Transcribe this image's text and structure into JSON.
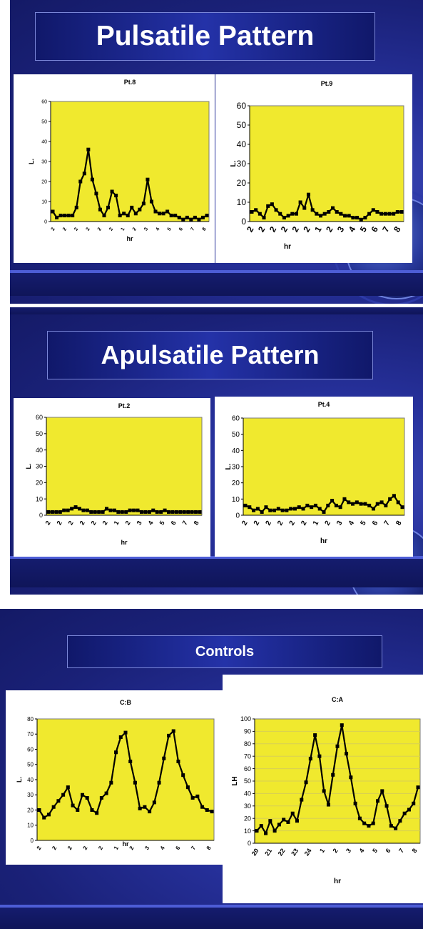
{
  "slides": [
    {
      "title": "Pulsatile Pattern"
    },
    {
      "title": "Apulsatile Pattern"
    },
    {
      "title": "Controls"
    }
  ],
  "chart_data": [
    {
      "type": "line",
      "title": "Pt.8",
      "ylabel": "L.",
      "xlabel": "hr",
      "ylim": [
        0,
        60
      ],
      "yticks": [
        0,
        10,
        20,
        30,
        40,
        50,
        60
      ],
      "xticks": [
        "2",
        "2",
        "2",
        "2",
        "2",
        "2",
        "1",
        "2",
        "3",
        "4",
        "5",
        "6",
        "7",
        "8"
      ],
      "grid": false,
      "values": [
        5,
        2,
        3,
        3,
        3,
        3,
        7,
        20,
        24,
        36,
        21,
        14,
        6,
        3,
        7,
        15,
        13,
        3,
        4,
        3,
        7,
        4,
        6,
        9,
        21,
        10,
        5,
        4,
        4,
        5,
        3,
        3,
        2,
        1,
        2,
        1,
        2,
        1,
        2,
        3
      ]
    },
    {
      "type": "line",
      "title": "Pt.9",
      "ylabel": "L.",
      "xlabel": "hr",
      "ylim": [
        0,
        60
      ],
      "yticks": [
        0,
        10,
        20,
        30,
        40,
        50,
        60
      ],
      "xticks": [
        "2",
        "2",
        "2",
        "2",
        "2",
        "2",
        "1",
        "2",
        "3",
        "4",
        "5",
        "6",
        "7",
        "8"
      ],
      "grid": false,
      "values": [
        5,
        6,
        4,
        2,
        8,
        9,
        6,
        4,
        2,
        3,
        4,
        4,
        10,
        7,
        14,
        6,
        4,
        3,
        4,
        5,
        7,
        5,
        4,
        3,
        3,
        2,
        2,
        1,
        2,
        4,
        6,
        5,
        4,
        4,
        4,
        4,
        5,
        5
      ]
    },
    {
      "type": "line",
      "title": "Pt.2",
      "ylabel": "L.",
      "xlabel": "hr",
      "ylim": [
        0,
        60
      ],
      "yticks": [
        0,
        10,
        20,
        30,
        40,
        50,
        60
      ],
      "xticks": [
        "2",
        "2",
        "2",
        "2",
        "2",
        "2",
        "1",
        "2",
        "3",
        "4",
        "5",
        "6",
        "7",
        "8"
      ],
      "grid": false,
      "values": [
        2,
        2,
        2,
        2,
        3,
        3,
        4,
        5,
        4,
        3,
        3,
        2,
        2,
        2,
        2,
        4,
        3,
        3,
        2,
        2,
        2,
        3,
        3,
        3,
        2,
        2,
        2,
        3,
        2,
        2,
        3,
        2,
        2,
        2,
        2,
        2,
        2,
        2,
        2,
        2
      ]
    },
    {
      "type": "line",
      "title": "Pt.4",
      "ylabel": "L.",
      "xlabel": "hr",
      "ylim": [
        0,
        60
      ],
      "yticks": [
        0,
        10,
        20,
        30,
        40,
        50,
        60
      ],
      "xticks": [
        "2",
        "2",
        "2",
        "2",
        "2",
        "2",
        "1",
        "2",
        "3",
        "4",
        "5",
        "6",
        "7",
        "8"
      ],
      "grid": false,
      "values": [
        6,
        5,
        3,
        4,
        2,
        5,
        3,
        3,
        4,
        3,
        3,
        4,
        4,
        5,
        4,
        6,
        5,
        6,
        4,
        2,
        6,
        9,
        6,
        5,
        10,
        8,
        7,
        8,
        7,
        7,
        6,
        4,
        7,
        8,
        6,
        10,
        12,
        8,
        5
      ]
    },
    {
      "type": "line",
      "title": "C:B",
      "ylabel": "L.",
      "xlabel": "hr",
      "ylim": [
        0,
        80
      ],
      "yticks": [
        0,
        10,
        20,
        30,
        40,
        50,
        60,
        70,
        80
      ],
      "xticks": [
        "2",
        "2",
        "2",
        "2",
        "2",
        "1",
        "2",
        "3",
        "4",
        "6",
        "7",
        "8"
      ],
      "grid": false,
      "values": [
        20,
        15,
        17,
        22,
        26,
        30,
        35,
        23,
        20,
        30,
        28,
        20,
        18,
        28,
        31,
        38,
        58,
        68,
        71,
        52,
        38,
        21,
        22,
        19,
        25,
        38,
        54,
        69,
        72,
        52,
        43,
        35,
        28,
        29,
        22,
        20,
        19
      ]
    },
    {
      "type": "line",
      "title": "C:A",
      "ylabel": "LH",
      "xlabel": "hr",
      "ylim": [
        0,
        100
      ],
      "yticks": [
        0,
        10,
        20,
        30,
        40,
        50,
        60,
        70,
        80,
        90,
        100
      ],
      "xticks": [
        "20",
        "21",
        "22",
        "23",
        "24",
        "1",
        "2",
        "3",
        "4",
        "5",
        "6",
        "7",
        "8"
      ],
      "grid": true,
      "values": [
        10,
        14,
        8,
        18,
        10,
        15,
        19,
        17,
        24,
        18,
        35,
        49,
        68,
        87,
        70,
        42,
        31,
        55,
        78,
        95,
        72,
        53,
        32,
        20,
        16,
        14,
        16,
        34,
        42,
        30,
        14,
        12,
        18,
        24,
        27,
        32,
        45
      ]
    }
  ]
}
